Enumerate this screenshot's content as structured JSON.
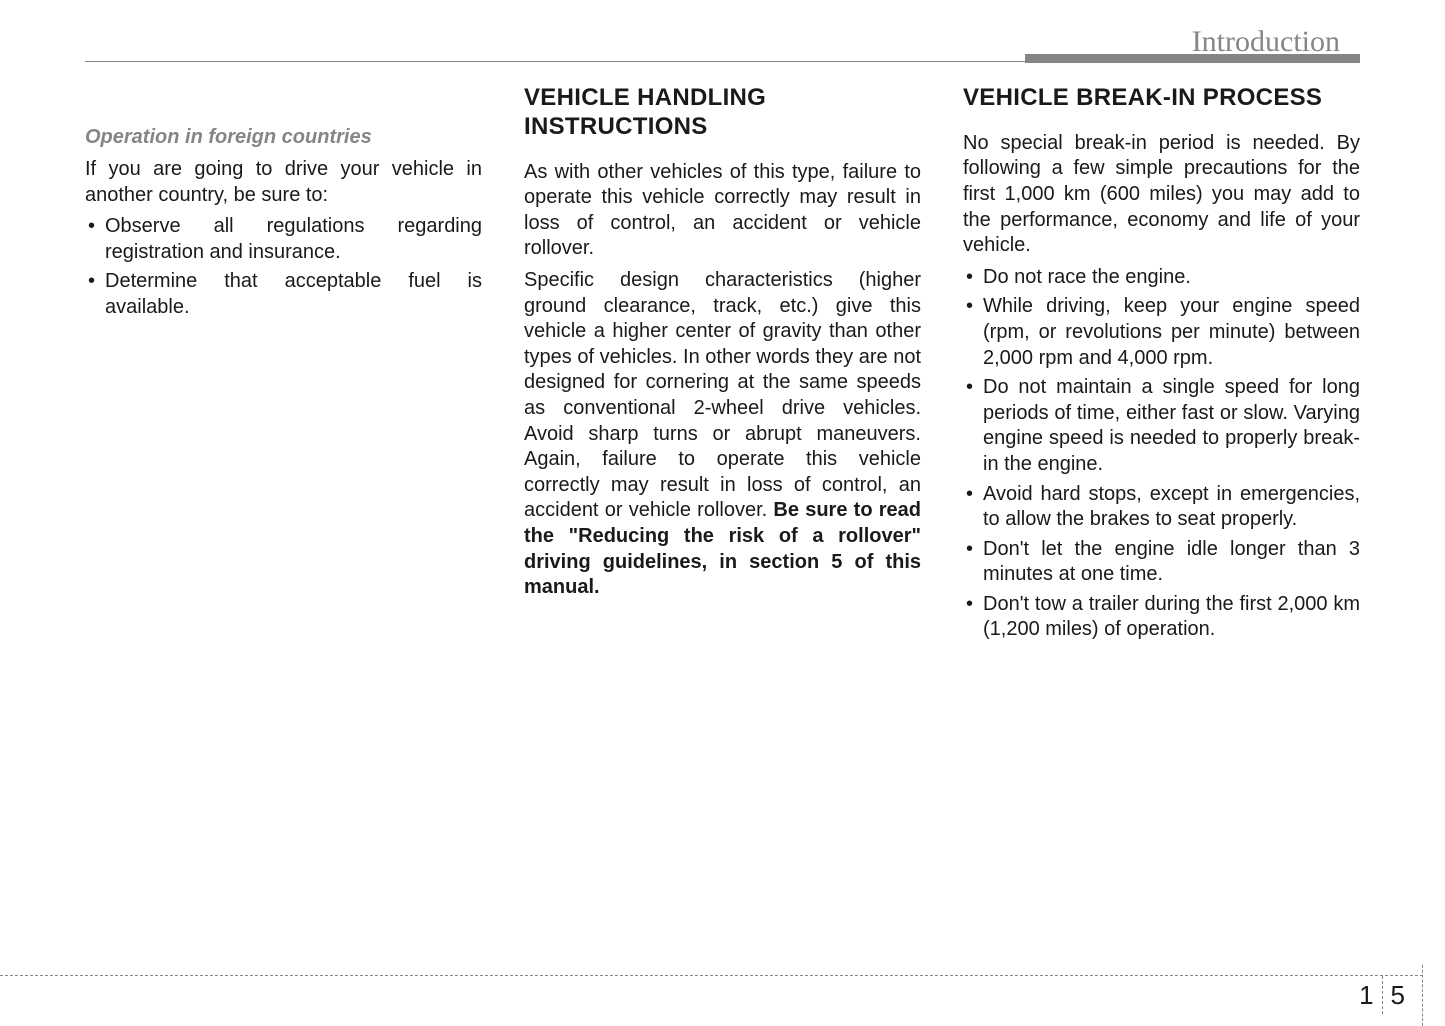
{
  "header": {
    "title": "Introduction"
  },
  "column1": {
    "subheading": "Operation in foreign countries",
    "intro": "If you are going to drive your vehicle in another country, be sure to:",
    "bullets": [
      "Observe all regulations regarding registration and insurance.",
      "Determine that acceptable fuel is available."
    ]
  },
  "column2": {
    "heading": "VEHICLE HANDLING INSTRUCTIONS",
    "para1": "As with other vehicles of this type, failure to operate this vehicle correctly may result in loss of control, an accident or vehicle rollover.",
    "para2_start": "Specific design characteristics (higher ground clearance, track, etc.) give this vehicle a higher center of gravity than other types of vehicles. In other words they are not designed for cornering at the same speeds as conventional 2-wheel drive vehicles. Avoid sharp turns or abrupt maneuvers. Again, failure to operate this vehicle correctly may result in loss of control, an accident or vehicle rollover. ",
    "para2_bold": "Be sure to read the \"Reducing the risk of a rollover\" driving guidelines, in section 5 of this manual."
  },
  "column3": {
    "heading": "VEHICLE BREAK-IN PROCESS",
    "intro": "No special break-in period is needed. By following a few simple precautions for the first 1,000 km (600 miles) you may add to the performance, economy and life of your vehicle.",
    "bullets": [
      "Do not race the engine.",
      "While driving, keep your engine speed (rpm, or revolutions per minute) between 2,000 rpm and 4,000 rpm.",
      "Do not maintain a single speed for long periods of time, either fast or slow. Varying engine speed is needed to properly break-in the engine.",
      "Avoid hard stops, except in emergencies, to allow the brakes to seat properly.",
      "Don't let the engine idle longer than 3 minutes at one time.",
      "Don't tow a trailer during the first 2,000 km (1,200 miles) of operation."
    ]
  },
  "page_number": {
    "chapter": "1",
    "page": "5"
  }
}
